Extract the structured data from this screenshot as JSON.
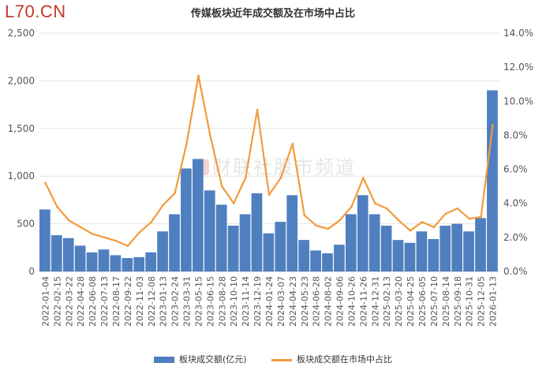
{
  "brand": "L70.CN",
  "watermark": "财联社股市频道",
  "chart_data": {
    "type": "bar+line",
    "title": "传媒板块近年成交额及在市场中占比",
    "categories": [
      "2022-01-04",
      "2022-02-15",
      "2022-03-22",
      "2022-04-28",
      "2022-06-08",
      "2022-07-13",
      "2022-08-17",
      "2022-09-22",
      "2022-11-03",
      "2022-12-08",
      "2023-01-13",
      "2023-02-24",
      "2023-03-31",
      "2023-05-15",
      "2023-06-15",
      "2023-08-28",
      "2023-10-10",
      "2023-11-14",
      "2023-12-19",
      "2024-01-24",
      "2024-03-07",
      "2024-04-23",
      "2024-05-23",
      "2024-06-28",
      "2024-08-02",
      "2024-09-06",
      "2024-10-26",
      "2024-11-26",
      "2024-12-31",
      "2025-02-13",
      "2025-03-20",
      "2025-04-25",
      "2025-06-05",
      "2025-07-10",
      "2025-08-14",
      "2025-09-18",
      "2025-10-31",
      "2025-12-05",
      "2026-01-13"
    ],
    "series": [
      {
        "name": "板块成交额(亿元)",
        "axis": "left",
        "type": "bar",
        "color": "#4f7fbf",
        "values": [
          650,
          380,
          350,
          270,
          200,
          230,
          170,
          140,
          150,
          200,
          420,
          600,
          1080,
          1180,
          850,
          700,
          480,
          600,
          820,
          400,
          520,
          800,
          330,
          220,
          190,
          280,
          600,
          800,
          600,
          480,
          330,
          300,
          420,
          340,
          480,
          500,
          420,
          560,
          1900
        ]
      },
      {
        "name": "板块成交额在市场中占比",
        "axis": "right",
        "type": "line",
        "color": "#f39a3c",
        "values": [
          5.2,
          3.8,
          3.0,
          2.6,
          2.2,
          2.0,
          1.8,
          1.5,
          2.3,
          2.9,
          3.9,
          4.6,
          7.5,
          11.5,
          8.0,
          5.0,
          4.0,
          5.5,
          9.5,
          4.5,
          5.5,
          7.5,
          3.3,
          2.7,
          2.5,
          3.0,
          3.8,
          5.5,
          4.0,
          3.7,
          3.0,
          2.4,
          2.9,
          2.6,
          3.4,
          3.7,
          3.1,
          3.2,
          8.6
        ]
      }
    ],
    "y_left": {
      "min": 0,
      "max": 2500,
      "ticks": [
        "0",
        "500",
        "1,000",
        "1,500",
        "2,000",
        "2,500"
      ]
    },
    "y_right": {
      "min": 0,
      "max": 14,
      "ticks": [
        "0.0%",
        "2.0%",
        "4.0%",
        "6.0%",
        "8.0%",
        "10.0%",
        "12.0%",
        "14.0%"
      ]
    },
    "grid": true,
    "legend_position": "bottom"
  }
}
